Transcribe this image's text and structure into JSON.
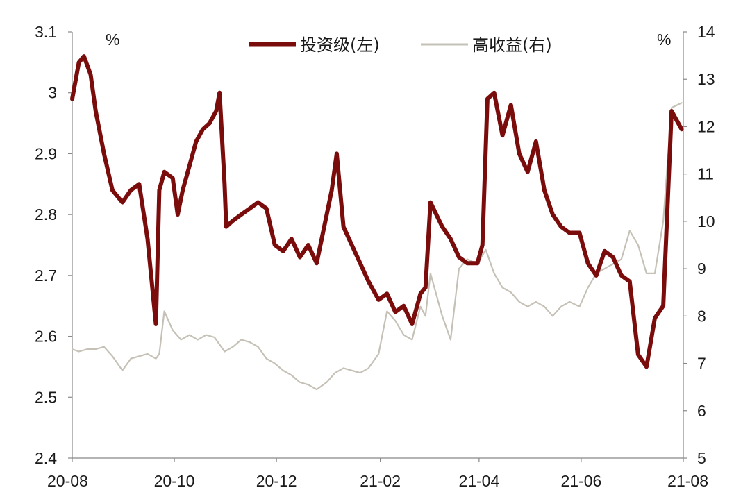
{
  "chart_data": {
    "type": "line",
    "title": "",
    "x_tick_labels": [
      "20-08",
      "20-10",
      "20-12",
      "21-02",
      "21-04",
      "21-06",
      "21-08"
    ],
    "x_tick_dates": [
      "2020-08-01",
      "2020-10-01",
      "2020-12-01",
      "2021-02-01",
      "2021-04-01",
      "2021-06-01",
      "2021-08-01"
    ],
    "x_range": [
      "2020-08-01",
      "2021-08-01"
    ],
    "y_left": {
      "unit": "%",
      "range": [
        2.4,
        3.1
      ],
      "ticks": [
        "2.4",
        "2.5",
        "2.6",
        "2.7",
        "2.8",
        "2.9",
        "3",
        "3.1"
      ]
    },
    "y_right": {
      "unit": "%",
      "range": [
        5,
        14
      ],
      "ticks": [
        "5",
        "6",
        "7",
        "8",
        "9",
        "10",
        "11",
        "12",
        "13",
        "14"
      ]
    },
    "grid": false,
    "legend_position": "top",
    "series": [
      {
        "name": "投资级(左)",
        "axis": "left",
        "color": "#7a0c0c",
        "x": [
          "2020-08-01",
          "2020-08-05",
          "2020-08-08",
          "2020-08-12",
          "2020-08-15",
          "2020-08-20",
          "2020-08-25",
          "2020-08-31",
          "2020-09-05",
          "2020-09-10",
          "2020-09-15",
          "2020-09-20",
          "2020-09-22",
          "2020-09-25",
          "2020-09-30",
          "2020-10-03",
          "2020-10-06",
          "2020-10-10",
          "2020-10-14",
          "2020-10-18",
          "2020-10-22",
          "2020-10-26",
          "2020-10-28",
          "2020-10-31",
          "2020-11-01",
          "2020-11-05",
          "2020-11-10",
          "2020-11-15",
          "2020-11-20",
          "2020-11-25",
          "2020-11-30",
          "2020-12-05",
          "2020-12-10",
          "2020-12-15",
          "2020-12-20",
          "2020-12-25",
          "2020-12-31",
          "2021-01-03",
          "2021-01-06",
          "2021-01-10",
          "2021-01-15",
          "2021-01-20",
          "2021-01-25",
          "2021-01-31",
          "2021-02-05",
          "2021-02-10",
          "2021-02-15",
          "2021-02-20",
          "2021-02-25",
          "2021-02-28",
          "2021-03-03",
          "2021-03-10",
          "2021-03-15",
          "2021-03-20",
          "2021-03-25",
          "2021-03-31",
          "2021-04-03",
          "2021-04-06",
          "2021-04-10",
          "2021-04-15",
          "2021-04-20",
          "2021-04-25",
          "2021-04-30",
          "2021-05-05",
          "2021-05-10",
          "2021-05-15",
          "2021-05-20",
          "2021-05-25",
          "2021-05-31",
          "2021-06-05",
          "2021-06-10",
          "2021-06-15",
          "2021-06-20",
          "2021-06-25",
          "2021-06-30",
          "2021-07-05",
          "2021-07-10",
          "2021-07-15",
          "2021-07-20",
          "2021-07-25",
          "2021-07-31"
        ],
        "values": [
          2.99,
          3.05,
          3.06,
          3.03,
          2.97,
          2.9,
          2.84,
          2.82,
          2.84,
          2.85,
          2.76,
          2.62,
          2.84,
          2.87,
          2.86,
          2.8,
          2.84,
          2.88,
          2.92,
          2.94,
          2.95,
          2.97,
          3.0,
          2.85,
          2.78,
          2.79,
          2.8,
          2.81,
          2.82,
          2.81,
          2.75,
          2.74,
          2.76,
          2.73,
          2.75,
          2.72,
          2.8,
          2.84,
          2.9,
          2.78,
          2.75,
          2.72,
          2.69,
          2.66,
          2.67,
          2.64,
          2.65,
          2.62,
          2.67,
          2.68,
          2.82,
          2.78,
          2.76,
          2.73,
          2.72,
          2.72,
          2.75,
          2.99,
          3.0,
          2.93,
          2.98,
          2.9,
          2.87,
          2.92,
          2.84,
          2.8,
          2.78,
          2.77,
          2.77,
          2.72,
          2.7,
          2.74,
          2.73,
          2.7,
          2.69,
          2.57,
          2.55,
          2.63,
          2.65,
          2.97,
          2.94
        ]
      },
      {
        "name": "高收益(右)",
        "axis": "right",
        "color": "#c5c1b6",
        "x": [
          "2020-08-01",
          "2020-08-05",
          "2020-08-10",
          "2020-08-15",
          "2020-08-20",
          "2020-08-25",
          "2020-08-31",
          "2020-09-05",
          "2020-09-10",
          "2020-09-15",
          "2020-09-20",
          "2020-09-22",
          "2020-09-25",
          "2020-09-30",
          "2020-10-05",
          "2020-10-10",
          "2020-10-15",
          "2020-10-20",
          "2020-10-25",
          "2020-10-31",
          "2020-11-05",
          "2020-11-10",
          "2020-11-15",
          "2020-11-20",
          "2020-11-25",
          "2020-11-30",
          "2020-12-05",
          "2020-12-10",
          "2020-12-15",
          "2020-12-20",
          "2020-12-25",
          "2020-12-31",
          "2021-01-05",
          "2021-01-10",
          "2021-01-15",
          "2021-01-20",
          "2021-01-25",
          "2021-01-31",
          "2021-02-05",
          "2021-02-10",
          "2021-02-15",
          "2021-02-20",
          "2021-02-25",
          "2021-02-28",
          "2021-03-03",
          "2021-03-10",
          "2021-03-15",
          "2021-03-20",
          "2021-03-25",
          "2021-03-31",
          "2021-04-05",
          "2021-04-10",
          "2021-04-15",
          "2021-04-20",
          "2021-04-25",
          "2021-04-30",
          "2021-05-05",
          "2021-05-10",
          "2021-05-15",
          "2021-05-20",
          "2021-05-25",
          "2021-05-31",
          "2021-06-05",
          "2021-06-10",
          "2021-06-15",
          "2021-06-20",
          "2021-06-25",
          "2021-06-30",
          "2021-07-05",
          "2021-07-10",
          "2021-07-15",
          "2021-07-20",
          "2021-07-25",
          "2021-07-31"
        ],
        "values": [
          7.3,
          7.25,
          7.3,
          7.3,
          7.35,
          7.15,
          6.85,
          7.1,
          7.15,
          7.2,
          7.1,
          7.2,
          8.1,
          7.7,
          7.5,
          7.6,
          7.5,
          7.6,
          7.55,
          7.25,
          7.35,
          7.5,
          7.45,
          7.35,
          7.1,
          7.0,
          6.85,
          6.75,
          6.6,
          6.55,
          6.45,
          6.6,
          6.8,
          6.9,
          6.85,
          6.8,
          6.9,
          7.2,
          8.1,
          7.9,
          7.6,
          7.5,
          8.2,
          8.0,
          8.9,
          8.0,
          7.5,
          9.0,
          9.2,
          9.1,
          9.4,
          8.9,
          8.6,
          8.5,
          8.3,
          8.2,
          8.3,
          8.2,
          8.0,
          8.2,
          8.3,
          8.2,
          8.6,
          8.9,
          9.0,
          9.1,
          9.2,
          9.8,
          9.5,
          8.9,
          8.9,
          10.0,
          12.4,
          12.5
        ]
      }
    ]
  }
}
